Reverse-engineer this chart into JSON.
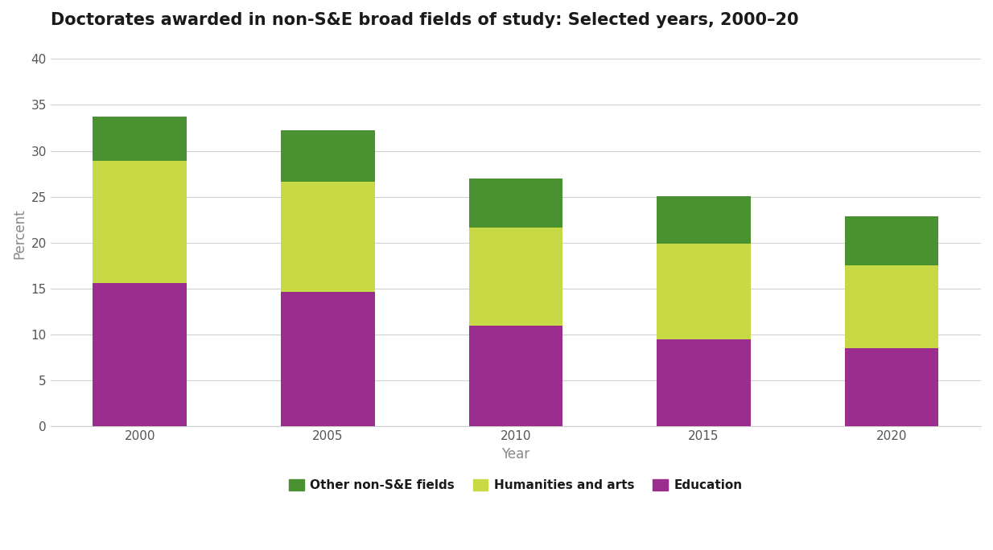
{
  "title": "Doctorates awarded in non-S&E broad fields of study: Selected years, 2000–20",
  "years": [
    2000,
    2005,
    2010,
    2015,
    2020
  ],
  "education": [
    15.6,
    14.6,
    11.0,
    9.5,
    8.5
  ],
  "humanities_and_arts": [
    13.3,
    12.0,
    10.6,
    10.4,
    9.0
  ],
  "other_nonse": [
    4.8,
    5.6,
    5.4,
    5.2,
    5.4
  ],
  "color_education": "#9b2d8e",
  "color_humanities": "#c8d946",
  "color_other": "#4a9231",
  "ylabel": "Percent",
  "xlabel": "Year",
  "ylim": [
    0,
    42
  ],
  "yticks": [
    0,
    5,
    10,
    15,
    20,
    25,
    30,
    35,
    40
  ],
  "legend_labels": [
    "Other non-S&E fields",
    "Humanities and arts",
    "Education"
  ],
  "bar_width": 0.5,
  "background_color": "#ffffff",
  "plot_bg_color": "#ffffff",
  "grid_color": "#d0d0d0",
  "title_fontsize": 15,
  "axis_fontsize": 12,
  "tick_fontsize": 11,
  "legend_fontsize": 11,
  "title_color": "#1a1a1a",
  "tick_color": "#555555",
  "label_color": "#888888"
}
